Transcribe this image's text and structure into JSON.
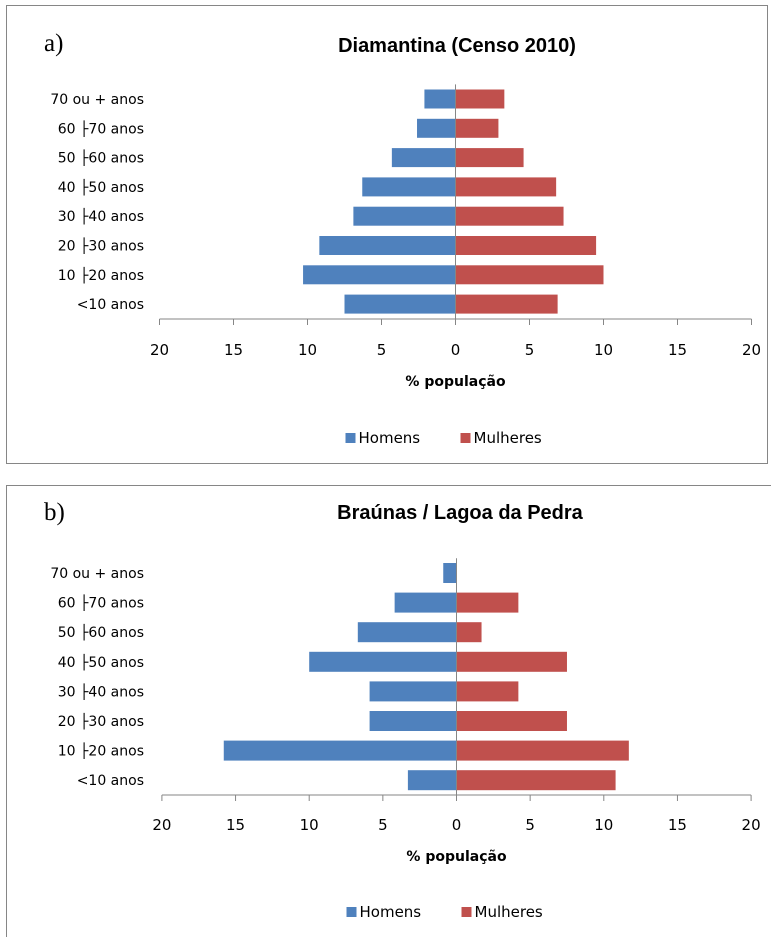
{
  "chart_data": [
    {
      "type": "bar",
      "orientation": "horizontal",
      "panel_label": "a)",
      "title": "Diamantina (Censo 2010)",
      "categories": [
        "70 ou + anos",
        "60 ├70 anos",
        "50 ├60 anos",
        "40 ├50 anos",
        "30 ├40 anos",
        "20 ├30 anos",
        "10 ├20 anos",
        "<10 anos"
      ],
      "series": [
        {
          "name": "Homens",
          "color": "#4F81BD",
          "values": [
            2.1,
            2.6,
            4.3,
            6.3,
            6.9,
            9.2,
            10.3,
            7.5
          ]
        },
        {
          "name": "Mulheres",
          "color": "#C0504D",
          "values": [
            3.3,
            2.9,
            4.6,
            6.8,
            7.3,
            9.5,
            10.0,
            6.9
          ]
        }
      ],
      "xlabel": "% população",
      "xticks": [
        "20",
        "15",
        "10",
        "5",
        "0",
        "5",
        "10",
        "15",
        "20"
      ],
      "xlim": [
        -20,
        20
      ],
      "legend_position": "bottom",
      "grid": false
    },
    {
      "type": "bar",
      "orientation": "horizontal",
      "panel_label": "b)",
      "title": "Braúnas / Lagoa da Pedra",
      "categories": [
        "70 ou + anos",
        "60 ├70 anos",
        "50 ├60 anos",
        "40 ├50 anos",
        "30 ├40 anos",
        "20 ├30 anos",
        "10 ├20 anos",
        "<10 anos"
      ],
      "series": [
        {
          "name": "Homens",
          "color": "#4F81BD",
          "values": [
            0.9,
            4.2,
            6.7,
            10.0,
            5.9,
            5.9,
            15.8,
            3.3
          ]
        },
        {
          "name": "Mulheres",
          "color": "#C0504D",
          "values": [
            0.0,
            4.2,
            1.7,
            7.5,
            4.2,
            7.5,
            11.7,
            10.8
          ]
        }
      ],
      "xlabel": "% população",
      "xticks": [
        "20",
        "15",
        "10",
        "5",
        "0",
        "5",
        "10",
        "15",
        "20"
      ],
      "xlim": [
        -20,
        20
      ],
      "legend_position": "bottom",
      "grid": false
    }
  ]
}
